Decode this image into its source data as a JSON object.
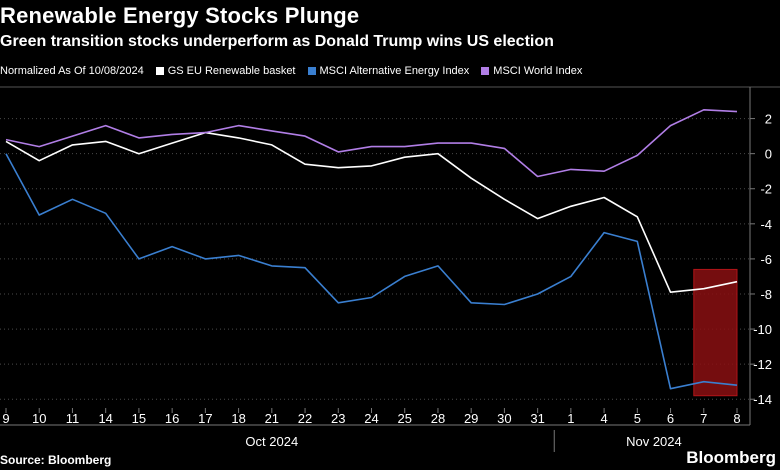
{
  "header": {
    "title": "Renewable Energy Stocks Plunge",
    "subtitle": "Green transition stocks underperform as Donald Trump wins US election"
  },
  "legend": {
    "note": "Normalized As Of 10/08/2024",
    "items": [
      {
        "label": "GS EU Renewable basket",
        "color": "#ffffff"
      },
      {
        "label": "MSCI Alternative Energy Index",
        "color": "#3a7fd0"
      },
      {
        "label": "MSCI World Index",
        "color": "#b17ee6"
      }
    ]
  },
  "footer": {
    "source": "Source: Bloomberg",
    "brand": "Bloomberg"
  },
  "chart_data": {
    "type": "line",
    "categories": [
      "9",
      "10",
      "11",
      "14",
      "15",
      "16",
      "17",
      "18",
      "21",
      "22",
      "23",
      "24",
      "25",
      "28",
      "29",
      "30",
      "31",
      "1",
      "4",
      "5",
      "6",
      "7",
      "8"
    ],
    "month_labels": [
      {
        "label": "Oct 2024",
        "center_index": 8
      },
      {
        "label": "Nov 2024",
        "center_index": 19.5
      }
    ],
    "month_separator_after_index": 16.5,
    "ylim": [
      -14.5,
      3.8
    ],
    "yticks": [
      2,
      0,
      -2,
      -4,
      -6,
      -8,
      -10,
      -12,
      -14
    ],
    "ytick_labels": [
      "2",
      "0",
      "-2",
      "-4",
      "-6",
      "-8",
      "-10",
      "-12",
      "-14"
    ],
    "series": [
      {
        "name": "GS EU Renewable basket",
        "color": "#ffffff",
        "values": [
          0.7,
          -0.4,
          0.5,
          0.7,
          0.0,
          0.6,
          1.2,
          0.9,
          0.5,
          -0.6,
          -0.8,
          -0.7,
          -0.2,
          0.0,
          -1.4,
          -2.6,
          -3.7,
          -3.0,
          -2.5,
          -3.6,
          -7.9,
          -7.7,
          -7.3
        ]
      },
      {
        "name": "MSCI Alternative Energy Index",
        "color": "#3a7fd0",
        "values": [
          0.0,
          -3.5,
          -2.6,
          -3.4,
          -6.0,
          -5.3,
          -6.0,
          -5.8,
          -6.4,
          -6.5,
          -8.5,
          -8.2,
          -7.0,
          -6.4,
          -8.5,
          -8.6,
          -8.0,
          -7.0,
          -4.5,
          -5.0,
          -13.4,
          -13.0,
          -13.2
        ]
      },
      {
        "name": "MSCI World Index",
        "color": "#b17ee6",
        "values": [
          0.8,
          0.4,
          1.0,
          1.6,
          0.9,
          1.1,
          1.2,
          1.6,
          1.3,
          1.0,
          0.1,
          0.4,
          0.4,
          0.6,
          0.6,
          0.3,
          -1.3,
          -0.9,
          -1.0,
          -0.1,
          1.6,
          2.5,
          2.4
        ]
      }
    ],
    "highlight": {
      "from_index": 20.7,
      "to_index": 22.0,
      "y_from": -13.8,
      "y_to": -6.6,
      "color": "#8a0f12"
    }
  }
}
